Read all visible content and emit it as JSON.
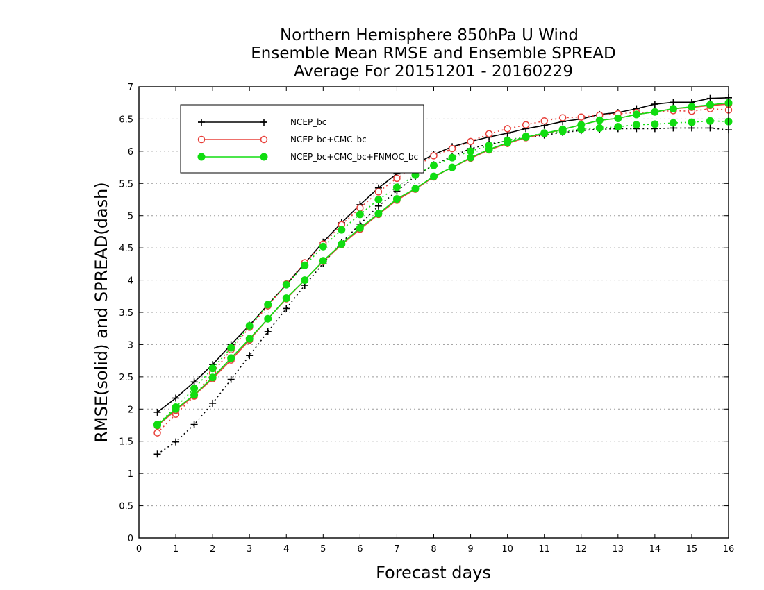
{
  "chart_data": {
    "type": "line",
    "title_lines": [
      "Northern Hemisphere 850hPa U Wind",
      "Ensemble Mean RMSE and Ensemble SPREAD",
      "Average For 20151201 - 20160229"
    ],
    "xlabel": "Forecast days",
    "ylabel": "RMSE(solid) and SPREAD(dash)",
    "xlim": [
      0,
      16
    ],
    "ylim": [
      0,
      7
    ],
    "xticks": [
      "0",
      "1",
      "2",
      "3",
      "4",
      "5",
      "6",
      "7",
      "8",
      "9",
      "10",
      "11",
      "12",
      "13",
      "14",
      "15",
      "16"
    ],
    "yticks": [
      "0",
      "0.5",
      "1",
      "1.5",
      "2",
      "2.5",
      "3",
      "3.5",
      "4",
      "4.5",
      "5",
      "5.5",
      "6",
      "6.5",
      "7"
    ],
    "grid": true,
    "legend_position": "top-left",
    "x": [
      0.5,
      1,
      1.5,
      2,
      2.5,
      3,
      3.5,
      4,
      4.5,
      5,
      5.5,
      6,
      6.5,
      7,
      7.5,
      8,
      8.5,
      9,
      9.5,
      10,
      10.5,
      11,
      11.5,
      12,
      12.5,
      13,
      13.5,
      14,
      14.5,
      15,
      15.5,
      16
    ],
    "series": [
      {
        "name": "NCEP_bc",
        "color": "#000000",
        "marker": "plus",
        "rmse": [
          1.95,
          2.17,
          2.42,
          2.69,
          3.0,
          3.3,
          3.62,
          3.93,
          4.26,
          4.59,
          4.89,
          5.17,
          5.43,
          5.65,
          5.8,
          5.95,
          6.07,
          6.15,
          6.22,
          6.28,
          6.35,
          6.4,
          6.46,
          6.5,
          6.57,
          6.6,
          6.66,
          6.73,
          6.76,
          6.76,
          6.82,
          6.83
        ],
        "spread": [
          1.3,
          1.49,
          1.76,
          2.09,
          2.46,
          2.83,
          3.2,
          3.56,
          3.92,
          4.26,
          4.58,
          4.87,
          5.15,
          5.38,
          5.61,
          5.79,
          5.92,
          6.04,
          6.11,
          6.16,
          6.21,
          6.25,
          6.29,
          6.32,
          6.34,
          6.35,
          6.35,
          6.35,
          6.36,
          6.36,
          6.36,
          6.33
        ]
      },
      {
        "name": "NCEP_bc+CMC_bc",
        "color": "#e8403a",
        "marker": "open-circle",
        "rmse": [
          1.74,
          1.98,
          2.21,
          2.47,
          2.76,
          3.07,
          3.4,
          3.71,
          4.0,
          4.29,
          4.55,
          4.79,
          5.02,
          5.24,
          5.41,
          5.6,
          5.75,
          5.89,
          6.02,
          6.12,
          6.21,
          6.27,
          6.34,
          6.41,
          6.48,
          6.51,
          6.57,
          6.61,
          6.66,
          6.68,
          6.71,
          6.73
        ],
        "spread": [
          1.63,
          1.92,
          2.2,
          2.56,
          2.92,
          3.27,
          3.6,
          3.94,
          4.27,
          4.56,
          4.86,
          5.12,
          5.37,
          5.58,
          5.76,
          5.93,
          6.04,
          6.15,
          6.27,
          6.35,
          6.41,
          6.47,
          6.52,
          6.53,
          6.56,
          6.58,
          6.6,
          6.61,
          6.63,
          6.62,
          6.66,
          6.64
        ]
      },
      {
        "name": "NCEP_bc+CMC_bc+FNMOC_bc",
        "color": "#11dd11",
        "marker": "filled-circle",
        "rmse": [
          1.75,
          2.0,
          2.22,
          2.49,
          2.79,
          3.09,
          3.4,
          3.72,
          4.0,
          4.3,
          4.56,
          4.81,
          5.03,
          5.26,
          5.42,
          5.61,
          5.75,
          5.9,
          6.03,
          6.13,
          6.22,
          6.28,
          6.34,
          6.41,
          6.48,
          6.51,
          6.57,
          6.61,
          6.66,
          6.69,
          6.72,
          6.75
        ],
        "spread": [
          1.76,
          2.03,
          2.32,
          2.63,
          2.95,
          3.29,
          3.62,
          3.93,
          4.23,
          4.52,
          4.78,
          5.02,
          5.25,
          5.44,
          5.63,
          5.78,
          5.9,
          6.0,
          6.09,
          6.17,
          6.23,
          6.28,
          6.31,
          6.34,
          6.36,
          6.38,
          6.41,
          6.42,
          6.44,
          6.45,
          6.47,
          6.46
        ]
      }
    ]
  }
}
